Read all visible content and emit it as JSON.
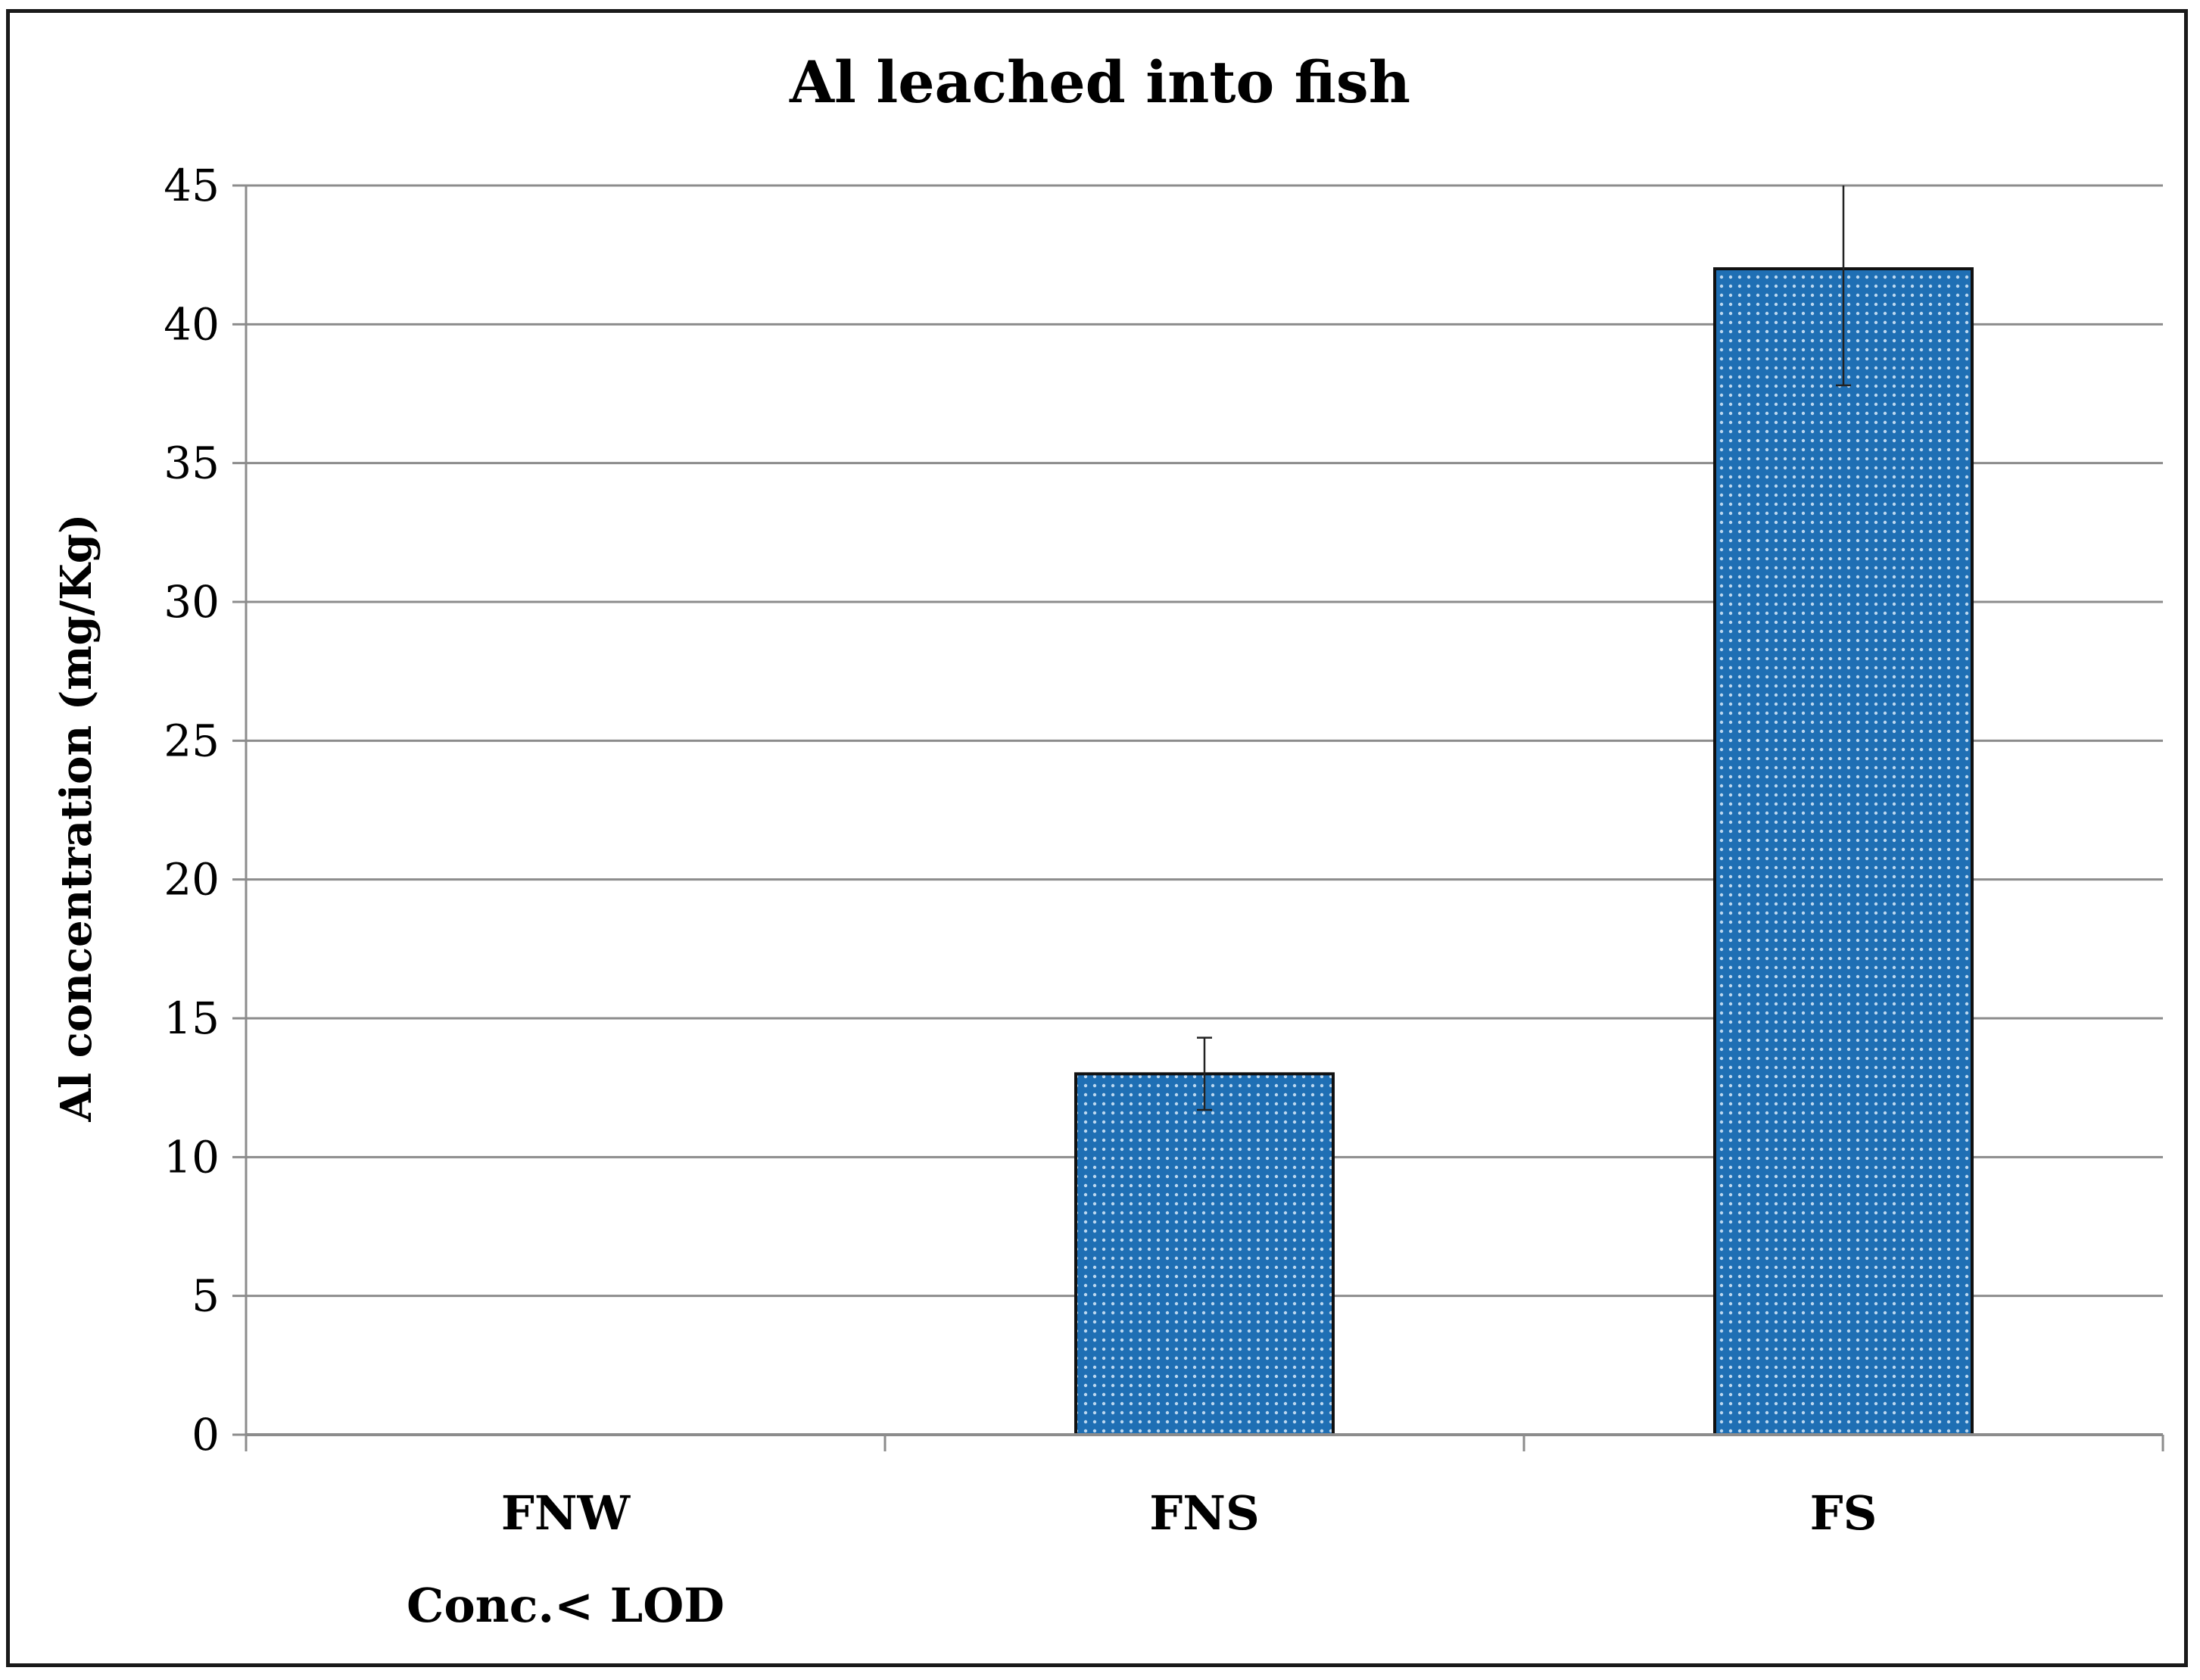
{
  "chart_data": {
    "type": "bar",
    "title": "Al leached into fish",
    "xlabel": "",
    "ylabel": "Al concentration (mg/Kg)",
    "categories": [
      "FNW",
      "FNS",
      "FS"
    ],
    "category_notes": [
      "Conc.< LOD",
      "",
      ""
    ],
    "values": [
      null,
      13,
      42
    ],
    "error_bars": [
      null,
      1.3,
      4.2
    ],
    "ylim": [
      0,
      45
    ],
    "yticks": [
      "0",
      "5",
      "10",
      "15",
      "20",
      "25",
      "30",
      "35",
      "40",
      "45"
    ],
    "grid": true,
    "legend": "none",
    "bar_color": "#1f6fb4",
    "bar_dot_color": "#bcd8f0"
  }
}
